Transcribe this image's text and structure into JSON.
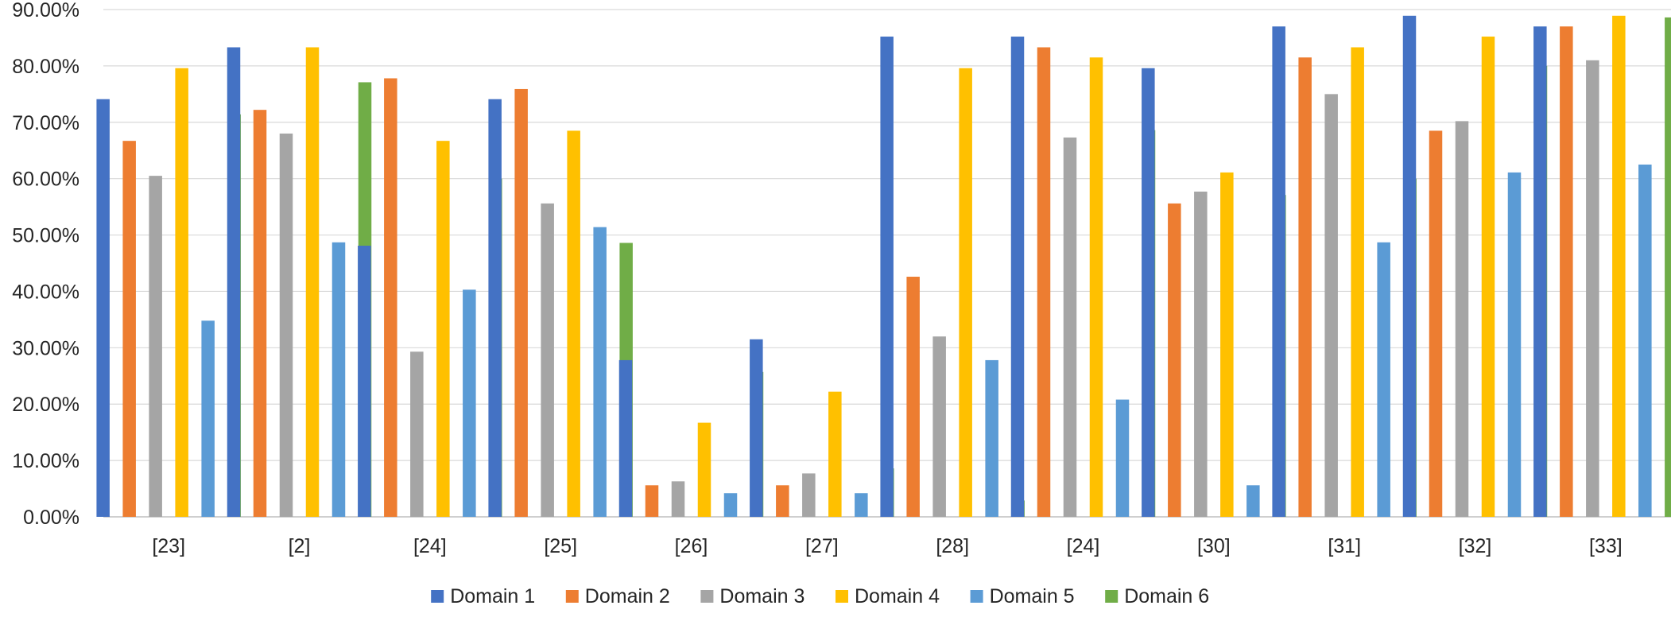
{
  "chart_data": {
    "type": "bar",
    "categories": [
      "[23]",
      "[2]",
      "[24]",
      "[25]",
      "[26]",
      "[27]",
      "[28]",
      "[24]",
      "[30]",
      "[31]",
      "[32]",
      "[33]"
    ],
    "y_ticks": [
      "0.00%",
      "10.00%",
      "20.00%",
      "30.00%",
      "40.00%",
      "50.00%",
      "60.00%",
      "70.00%",
      "80.00%",
      "90.00%"
    ],
    "ylim": [
      0,
      90
    ],
    "grid": true,
    "legend_position": "bottom",
    "series": [
      {
        "name": "Domain 1",
        "color": "#4472C4",
        "values": [
          74.1,
          83.3,
          48.1,
          74.1,
          27.8,
          31.5,
          85.2,
          85.2,
          79.6,
          87.0,
          88.9,
          87.0
        ]
      },
      {
        "name": "Domain 2",
        "color": "#ED7D31",
        "values": [
          66.7,
          72.2,
          77.8,
          75.9,
          5.6,
          5.6,
          42.6,
          83.3,
          55.6,
          81.5,
          68.5,
          87.0
        ]
      },
      {
        "name": "Domain 3",
        "color": "#A5A5A5",
        "values": [
          60.5,
          68.0,
          29.3,
          55.6,
          6.3,
          7.7,
          32.0,
          67.3,
          57.7,
          75.0,
          70.2,
          81.0
        ]
      },
      {
        "name": "Domain 4",
        "color": "#FFC000",
        "values": [
          79.6,
          83.3,
          66.7,
          68.5,
          16.7,
          22.2,
          79.6,
          81.5,
          61.1,
          83.3,
          85.2,
          88.9
        ]
      },
      {
        "name": "Domain 5",
        "color": "#5B9BD5",
        "values": [
          34.8,
          48.7,
          40.3,
          51.4,
          4.2,
          4.2,
          27.8,
          20.8,
          5.6,
          48.7,
          61.1,
          62.5
        ]
      },
      {
        "name": "Domain 6",
        "color": "#70AD47",
        "values": [
          71.4,
          77.1,
          60.0,
          48.6,
          25.7,
          8.6,
          2.9,
          68.6,
          57.1,
          60.0,
          80.0,
          88.6
        ]
      }
    ]
  }
}
